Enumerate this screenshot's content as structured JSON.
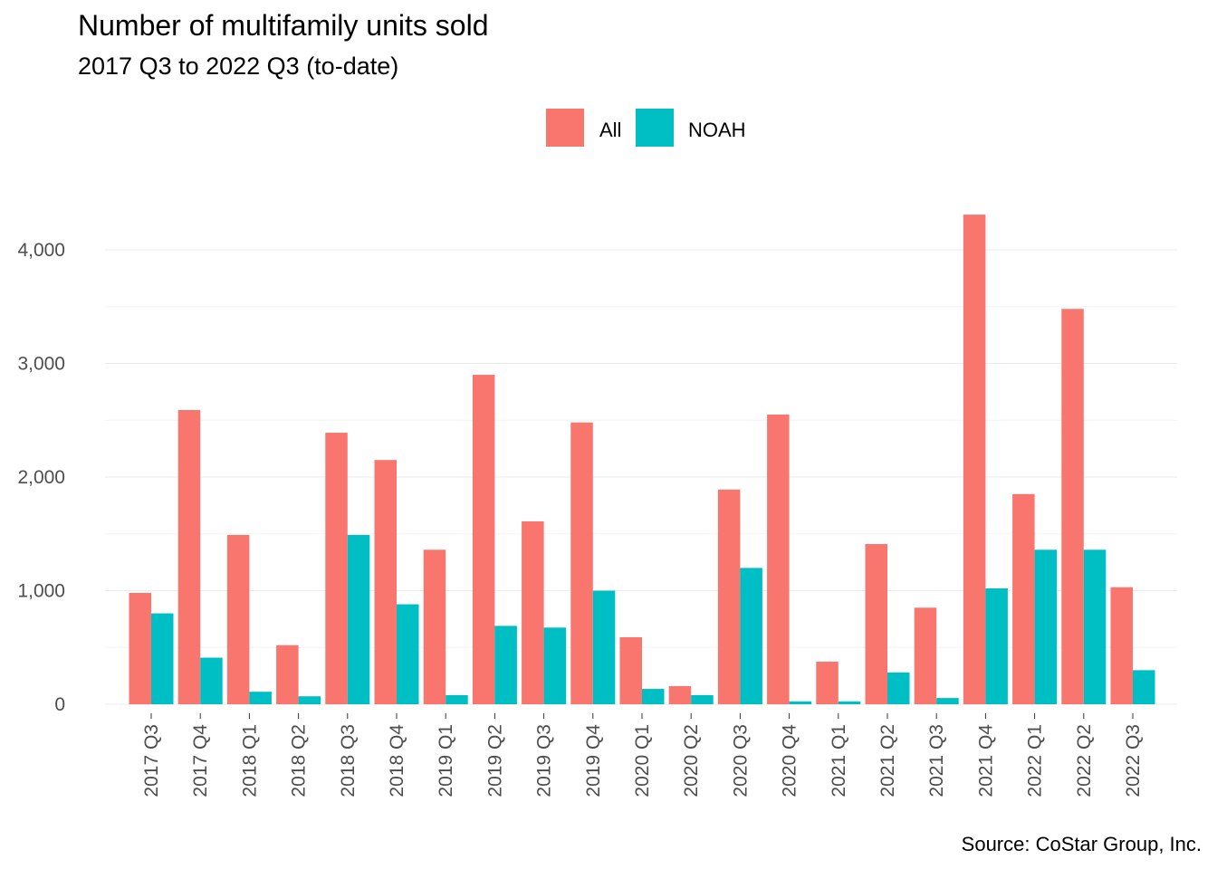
{
  "chart_data": {
    "type": "bar",
    "title": "Number of multifamily units sold",
    "subtitle": "2017 Q3 to 2022 Q3 (to-date)",
    "caption": "Source: CoStar Group, Inc.",
    "xlabel": "",
    "ylabel": "",
    "ylim": [
      0,
      4500
    ],
    "yticks": [
      0,
      1000,
      2000,
      3000,
      4000
    ],
    "ytick_labels": [
      "0",
      "1,000",
      "2,000",
      "3,000",
      "4,000"
    ],
    "grid": true,
    "legend_position": "top",
    "categories": [
      "2017 Q3",
      "2017 Q4",
      "2018 Q1",
      "2018 Q2",
      "2018 Q3",
      "2018 Q4",
      "2019 Q1",
      "2019 Q2",
      "2019 Q3",
      "2019 Q4",
      "2020 Q1",
      "2020 Q2",
      "2020 Q3",
      "2020 Q4",
      "2021 Q1",
      "2021 Q2",
      "2021 Q3",
      "2021 Q4",
      "2022 Q1",
      "2022 Q2",
      "2022 Q3"
    ],
    "series": [
      {
        "name": "All",
        "color": "#F8766D",
        "values": [
          980,
          2590,
          1490,
          520,
          2390,
          2150,
          1360,
          2900,
          1610,
          2480,
          590,
          160,
          1890,
          2550,
          375,
          1410,
          850,
          4310,
          1850,
          3480,
          1030
        ]
      },
      {
        "name": "NOAH",
        "color": "#00BFC4",
        "values": [
          800,
          410,
          110,
          70,
          1490,
          880,
          80,
          690,
          675,
          1000,
          135,
          80,
          1200,
          25,
          25,
          280,
          55,
          1020,
          1360,
          1360,
          300
        ]
      }
    ]
  }
}
